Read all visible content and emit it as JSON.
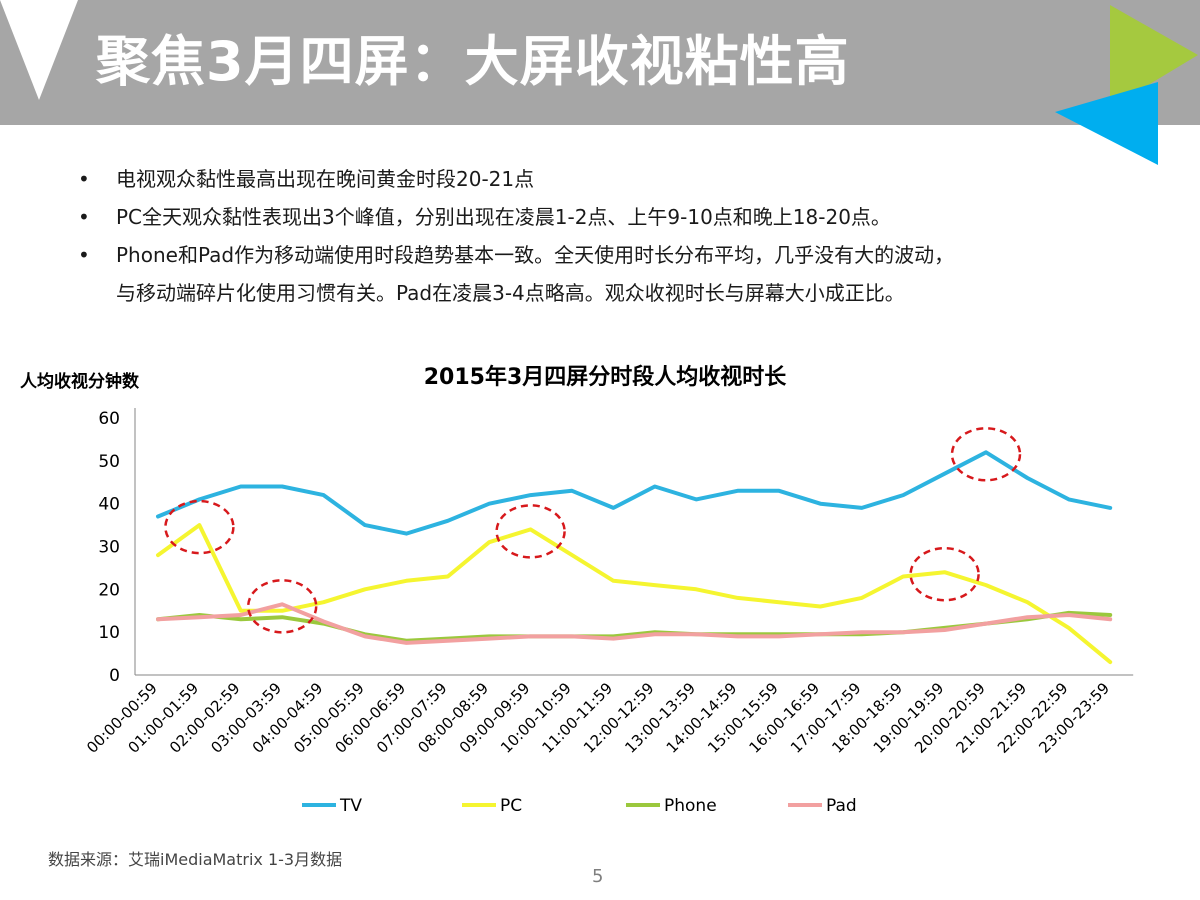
{
  "slide": {
    "title": "聚焦3月四屏：大屏收视粘性高",
    "bullets": [
      "电视观众黏性最高出现在晚间黄金时段20-21点",
      "PC全天观众黏性表现出3个峰值，分别出现在凌晨1-2点、上午9-10点和晚上18-20点。",
      "Phone和Pad作为移动端使用时段趋势基本一致。全天使用时长分布平均，几乎没有大的波动，",
      "与移动端碎片化使用习惯有关。Pad在凌晨3-4点略高。观众收视时长与屏幕大小成正比。"
    ],
    "source": "数据来源：艾瑞iMediaMatrix 1-3月数据",
    "page_number": "5",
    "colors": {
      "header": "#a6a6a6",
      "accent_green": "#a5c93f",
      "accent_blue": "#00aeef"
    }
  },
  "chart_data": {
    "type": "line",
    "title": "2015年3月四屏分时段人均收视时长",
    "ylabel": "人均收视分钟数",
    "xlabel": "",
    "ylim": [
      0,
      60
    ],
    "yticks": [
      0,
      10,
      20,
      30,
      40,
      50,
      60
    ],
    "grid": false,
    "legend": "bottom",
    "categories": [
      "00:00-00:59",
      "01:00-01:59",
      "02:00-02:59",
      "03:00-03:59",
      "04:00-04:59",
      "05:00-05:59",
      "06:00-06:59",
      "07:00-07:59",
      "08:00-08:59",
      "09:00-09:59",
      "10:00-10:59",
      "11:00-11:59",
      "12:00-12:59",
      "13:00-13:59",
      "14:00-14:59",
      "15:00-15:59",
      "16:00-16:59",
      "17:00-17:59",
      "18:00-18:59",
      "19:00-19:59",
      "20:00-20:59",
      "21:00-21:59",
      "22:00-22:59",
      "23:00-23:59"
    ],
    "series": [
      {
        "name": "TV",
        "color": "#2db3e0",
        "values": [
          37,
          41,
          44,
          44,
          42,
          35,
          33,
          36,
          40,
          42,
          43,
          39,
          44,
          41,
          43,
          43,
          40,
          39,
          42,
          47,
          52,
          46,
          41,
          39
        ]
      },
      {
        "name": "PC",
        "color": "#f5f530",
        "values": [
          28,
          35,
          15,
          15,
          17,
          20,
          22,
          23,
          31,
          34,
          28,
          22,
          21,
          20,
          18,
          17,
          16,
          18,
          23,
          24,
          21,
          17,
          11,
          3
        ]
      },
      {
        "name": "Phone",
        "color": "#9bc83d",
        "values": [
          13,
          14,
          13,
          13.5,
          12,
          9.5,
          8,
          8.5,
          9,
          9,
          9,
          9,
          10,
          9.5,
          9.5,
          9.5,
          9.5,
          9.5,
          10,
          11,
          12,
          13,
          14.5,
          14
        ]
      },
      {
        "name": "Pad",
        "color": "#f2a0a0",
        "values": [
          13,
          13.5,
          14,
          16.5,
          12.5,
          9,
          7.5,
          8,
          8.5,
          9,
          9,
          8.5,
          9.5,
          9.5,
          9,
          9,
          9.5,
          10,
          10,
          10.5,
          12,
          13.5,
          14,
          13
        ]
      }
    ],
    "highlights": [
      {
        "series": "PC",
        "category": "01:00-01:59"
      },
      {
        "series": "Pad",
        "category": "03:00-03:59"
      },
      {
        "series": "PC",
        "category": "09:00-09:59"
      },
      {
        "series": "PC",
        "category": "19:00-19:59"
      },
      {
        "series": "TV",
        "category": "20:00-20:59"
      }
    ]
  }
}
